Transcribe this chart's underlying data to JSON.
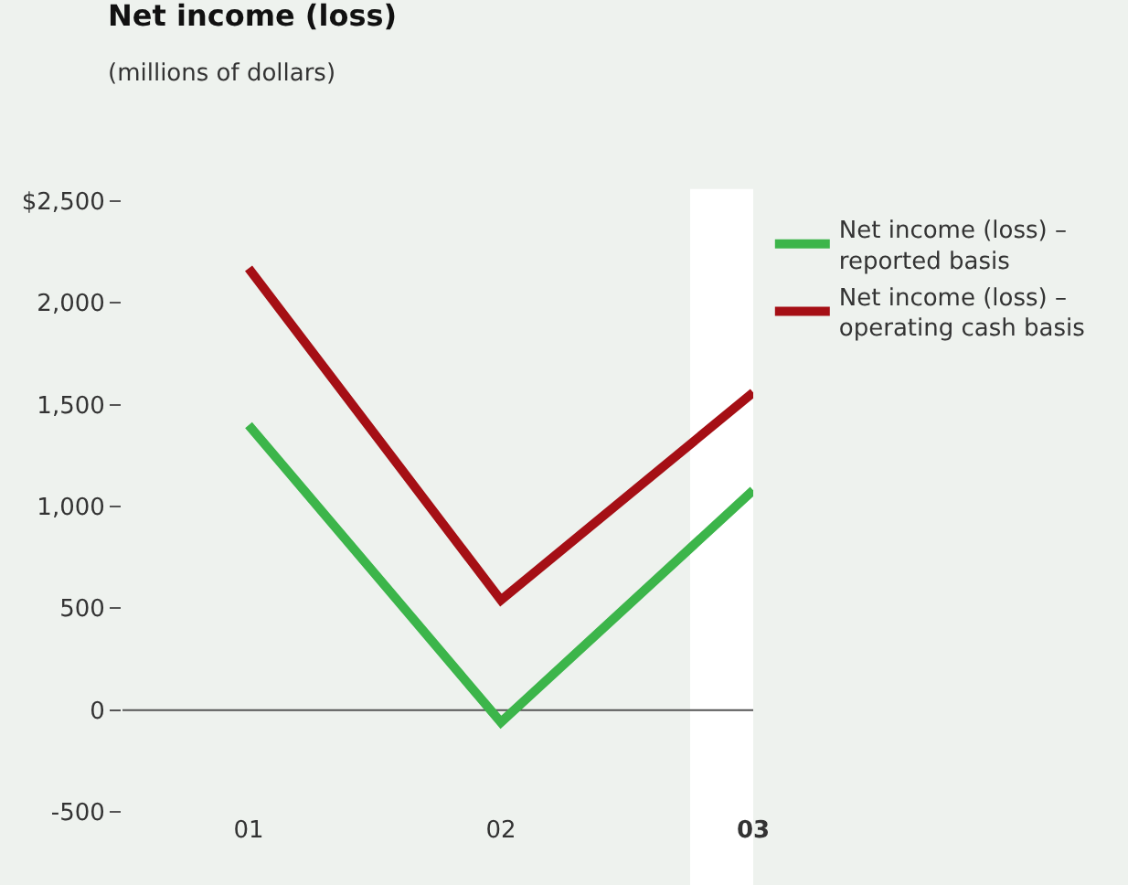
{
  "chart_data": {
    "type": "line",
    "title": "Net income (loss)",
    "subtitle": "(millions of dollars)",
    "categories": [
      "01",
      "02",
      "03"
    ],
    "series": [
      {
        "name": "Net income (loss) –\nreported basis",
        "color": "#3cb54a",
        "values": [
          1400,
          -60,
          1080
        ]
      },
      {
        "name": "Net income (loss) –\noperating cash basis",
        "color": "#a50f15",
        "values": [
          2170,
          540,
          1560
        ]
      }
    ],
    "ylim": [
      -500,
      2500
    ],
    "yticks": [
      {
        "value": 2500,
        "label": "$2,500"
      },
      {
        "value": 2000,
        "label": "2,000"
      },
      {
        "value": 1500,
        "label": "1,500"
      },
      {
        "value": 1000,
        "label": "1,000"
      },
      {
        "value": 500,
        "label": "500"
      },
      {
        "value": 0,
        "label": "0"
      },
      {
        "value": -500,
        "label": "-500"
      }
    ],
    "ref_lines": [
      {
        "axis": "y",
        "value": 0,
        "color": "#555555"
      }
    ],
    "bands": [
      {
        "axis": "x",
        "from": "03",
        "to": "03",
        "color": "#ffffff"
      }
    ],
    "grid": false,
    "legend": "top right",
    "marker": "none",
    "line_style": "solid"
  }
}
